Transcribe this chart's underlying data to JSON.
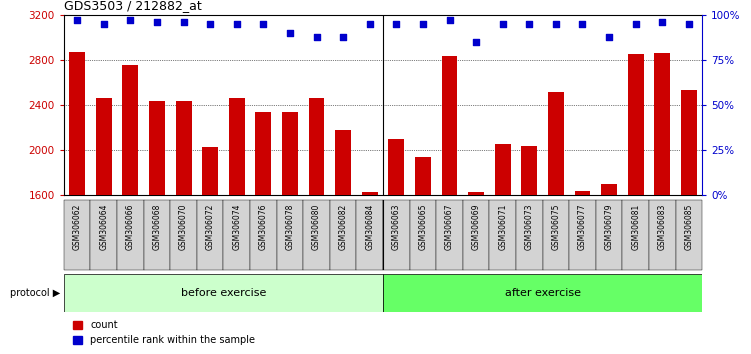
{
  "title": "GDS3503 / 212882_at",
  "categories": [
    "GSM306062",
    "GSM306064",
    "GSM306066",
    "GSM306068",
    "GSM306070",
    "GSM306072",
    "GSM306074",
    "GSM306076",
    "GSM306078",
    "GSM306080",
    "GSM306082",
    "GSM306084",
    "GSM306063",
    "GSM306065",
    "GSM306067",
    "GSM306069",
    "GSM306071",
    "GSM306073",
    "GSM306075",
    "GSM306077",
    "GSM306079",
    "GSM306081",
    "GSM306083",
    "GSM306085"
  ],
  "counts": [
    2870,
    2460,
    2760,
    2435,
    2435,
    2025,
    2460,
    2340,
    2340,
    2460,
    2180,
    1625,
    2100,
    1940,
    2840,
    1625,
    2050,
    2040,
    2520,
    1635,
    1700,
    2850,
    2860,
    2530
  ],
  "percentile_ranks": [
    97,
    95,
    97,
    96,
    96,
    95,
    95,
    95,
    90,
    88,
    88,
    95,
    95,
    95,
    97,
    85,
    95,
    95,
    95,
    95,
    88,
    95,
    96,
    95
  ],
  "before_count": 12,
  "after_count": 12,
  "bar_color": "#cc0000",
  "dot_color": "#0000cc",
  "before_color": "#ccffcc",
  "after_color": "#66ff66",
  "tick_bg_color": "#d3d3d3",
  "ylim_left": [
    1600,
    3200
  ],
  "ylim_right": [
    0,
    100
  ],
  "yticks_left": [
    1600,
    2000,
    2400,
    2800,
    3200
  ],
  "yticks_right": [
    0,
    25,
    50,
    75,
    100
  ],
  "grid_values": [
    2000,
    2400,
    2800
  ],
  "legend_count_label": "count",
  "legend_pct_label": "percentile rank within the sample",
  "protocol_label": "protocol",
  "before_label": "before exercise",
  "after_label": "after exercise"
}
